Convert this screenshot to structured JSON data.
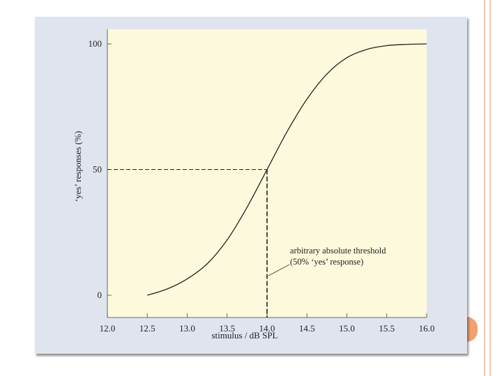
{
  "colors": {
    "plot_background": "#fdf9dc",
    "figure_background": "#dfe4ef",
    "curve": "#222222",
    "slide_accent": "#f1a070"
  },
  "chart_data": {
    "type": "line",
    "xlabel": "stimulus / dB SPL",
    "ylabel": "‘yes’ responses (%)",
    "xlim": [
      12.0,
      16.0
    ],
    "ylim": [
      0,
      100
    ],
    "x_ticks": [
      "12.0",
      "12.5",
      "13.0",
      "13.5",
      "14.0",
      "14.5",
      "15.0",
      "15.5",
      "16.0"
    ],
    "y_ticks": [
      "0",
      "50",
      "100"
    ],
    "grid": false,
    "series": [
      {
        "x": [
          12.5,
          12.75,
          13.0,
          13.25,
          13.5,
          13.75,
          14.0,
          14.25,
          14.5,
          14.75,
          15.0,
          15.25,
          15.5,
          15.75,
          16.0
        ],
        "y": [
          0,
          2.5,
          6.5,
          12.5,
          22,
          35,
          50,
          65,
          78,
          88,
          94.5,
          97.8,
          99.3,
          99.8,
          100
        ]
      }
    ],
    "threshold": {
      "x": 14.0,
      "y": 50
    },
    "annotation": {
      "line1": "arbitrary absolute threshold",
      "line2": "(50% ‘yes’ response)"
    }
  }
}
